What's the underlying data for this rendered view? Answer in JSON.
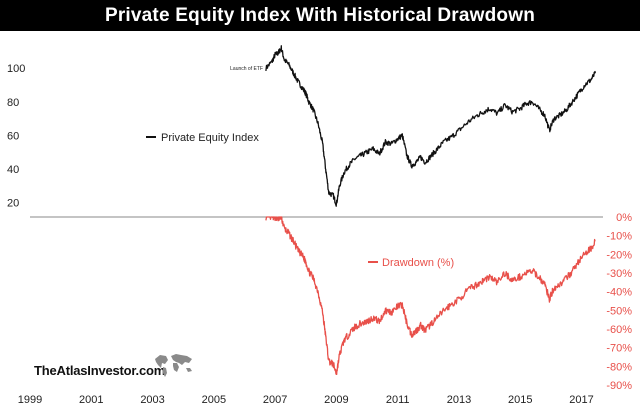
{
  "title": "Private Equity Index With Historical Drawdown",
  "brand": "TheAtlasInvestor.com",
  "colors": {
    "background": "#ffffff",
    "title_bar": "#000000",
    "title_text": "#ffffff",
    "index_line": "#111111",
    "drawdown_line": "#e8504a",
    "axis_text": "#222222",
    "divider": "#888888"
  },
  "chart_data": [
    {
      "type": "line",
      "title": "",
      "xlabel": "",
      "ylabel": "",
      "xlim": [
        1999,
        2017.7
      ],
      "ylim": [
        15,
        115
      ],
      "yticks": [
        20,
        40,
        60,
        80,
        100
      ],
      "ytick_labels": [
        "20",
        "40",
        "60",
        "80",
        "100"
      ],
      "legend": "left",
      "annotations": [
        {
          "text": "Launch of ETF",
          "x": 2006.7,
          "y": 100
        }
      ],
      "series": [
        {
          "name": "Private Equity Index",
          "color": "#111111",
          "x": [
            2006.7,
            2006.9,
            2007.0,
            2007.1,
            2007.2,
            2007.3,
            2007.45,
            2007.6,
            2007.75,
            2007.9,
            2008.0,
            2008.1,
            2008.25,
            2008.4,
            2008.55,
            2008.65,
            2008.75,
            2008.9,
            2009.0,
            2009.1,
            2009.25,
            2009.4,
            2009.6,
            2009.8,
            2010.0,
            2010.2,
            2010.4,
            2010.6,
            2010.8,
            2011.0,
            2011.15,
            2011.3,
            2011.45,
            2011.6,
            2011.75,
            2011.9,
            2012.1,
            2012.3,
            2012.5,
            2012.75,
            2013.0,
            2013.3,
            2013.6,
            2013.8,
            2014.0,
            2014.25,
            2014.5,
            2014.75,
            2015.0,
            2015.2,
            2015.4,
            2015.6,
            2015.8,
            2015.95,
            2016.1,
            2016.3,
            2016.5,
            2016.7,
            2016.9,
            2017.1,
            2017.3,
            2017.45
          ],
          "values": [
            100,
            104,
            108,
            109,
            112,
            105,
            102,
            97,
            92,
            88,
            85,
            80,
            75,
            67,
            55,
            40,
            26,
            24,
            19,
            30,
            38,
            42,
            46,
            48,
            50,
            52,
            49,
            56,
            55,
            58,
            60,
            48,
            42,
            44,
            47,
            44,
            48,
            52,
            56,
            59,
            63,
            68,
            72,
            74,
            76,
            73,
            78,
            74,
            76,
            79,
            80,
            76,
            72,
            63,
            70,
            72,
            75,
            80,
            85,
            90,
            93,
            97
          ]
        }
      ]
    },
    {
      "type": "line",
      "title": "",
      "xlabel": "",
      "ylabel": "",
      "xlim": [
        1999,
        2017.7
      ],
      "ylim": [
        -90,
        0
      ],
      "xticks": [
        1999,
        2001,
        2003,
        2005,
        2007,
        2009,
        2011,
        2013,
        2015,
        2017
      ],
      "xtick_labels": [
        "1999",
        "2001",
        "2003",
        "2005",
        "2007",
        "2009",
        "2011",
        "2013",
        "2015",
        "2017"
      ],
      "yticks": [
        0,
        -10,
        -20,
        -30,
        -40,
        -50,
        -60,
        -70,
        -80,
        -90
      ],
      "ytick_labels": [
        "0%",
        "-10%",
        "-20%",
        "-30%",
        "-40%",
        "-50%",
        "-60%",
        "-70%",
        "-80%",
        "-90%"
      ],
      "legend": "center",
      "series": [
        {
          "name": "Drawdown (%)",
          "color": "#e8504a",
          "x": [
            2006.7,
            2006.9,
            2007.0,
            2007.1,
            2007.2,
            2007.3,
            2007.45,
            2007.6,
            2007.75,
            2007.9,
            2008.0,
            2008.1,
            2008.25,
            2008.4,
            2008.55,
            2008.65,
            2008.75,
            2008.9,
            2009.0,
            2009.1,
            2009.25,
            2009.4,
            2009.6,
            2009.8,
            2010.0,
            2010.2,
            2010.4,
            2010.6,
            2010.8,
            2011.0,
            2011.15,
            2011.3,
            2011.45,
            2011.6,
            2011.75,
            2011.9,
            2012.1,
            2012.3,
            2012.5,
            2012.75,
            2013.0,
            2013.3,
            2013.6,
            2013.8,
            2014.0,
            2014.25,
            2014.5,
            2014.75,
            2015.0,
            2015.2,
            2015.4,
            2015.6,
            2015.8,
            2015.95,
            2016.1,
            2016.3,
            2016.5,
            2016.7,
            2016.9,
            2017.1,
            2017.3,
            2017.45
          ],
          "values": [
            0,
            0,
            0,
            -1,
            0,
            -6,
            -9,
            -13,
            -18,
            -21,
            -24,
            -29,
            -33,
            -40,
            -51,
            -64,
            -77,
            -79,
            -84,
            -74,
            -66,
            -63,
            -59,
            -57,
            -56,
            -54,
            -56,
            -50,
            -51,
            -48,
            -47,
            -57,
            -63,
            -61,
            -58,
            -61,
            -57,
            -54,
            -50,
            -47,
            -44,
            -39,
            -36,
            -34,
            -32,
            -35,
            -30,
            -34,
            -32,
            -30,
            -29,
            -32,
            -36,
            -44,
            -38,
            -36,
            -33,
            -29,
            -24,
            -20,
            -17,
            -13
          ]
        }
      ]
    }
  ]
}
